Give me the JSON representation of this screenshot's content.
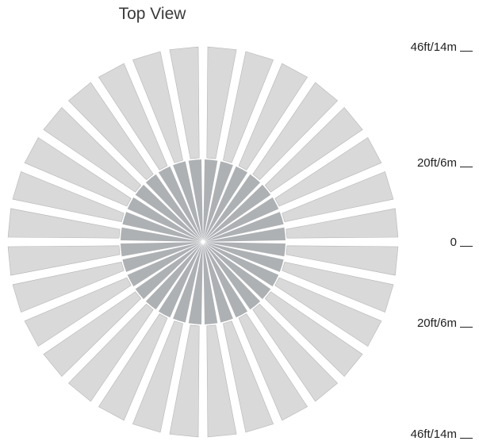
{
  "title": "Top View",
  "colors": {
    "outer_segment": "#d9d9d9",
    "outer_segment_stroke": "#b5b5b5",
    "inner_segment": "#aeb1b4",
    "background": "#ffffff"
  },
  "fan": {
    "segment_count": 32
  },
  "scale": {
    "labels": [
      "46ft/14m",
      "20ft/6m",
      "0",
      "20ft/6m",
      "46ft/14m"
    ]
  }
}
